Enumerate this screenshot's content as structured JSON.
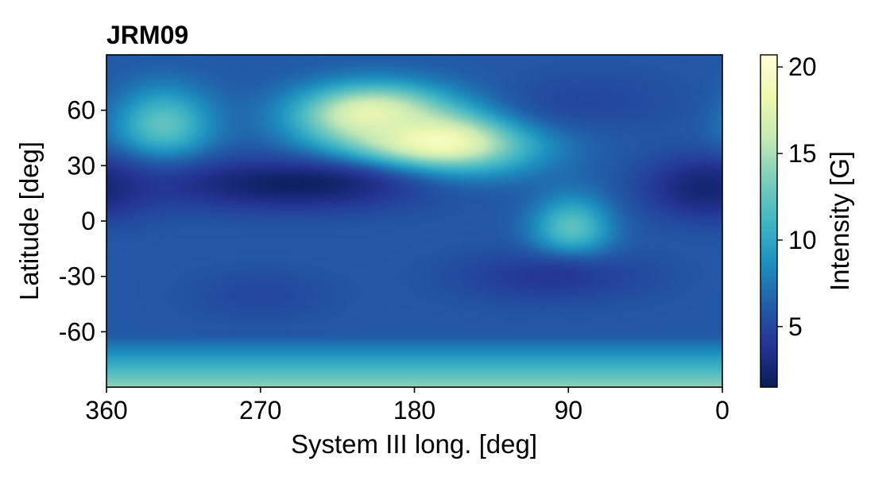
{
  "chart_data": {
    "type": "heatmap",
    "title": "JRM09",
    "xlabel": "System III long. [deg]",
    "ylabel": "Latitude [deg]",
    "colorbar_label": "Intensity [G]",
    "xlim": [
      360,
      0
    ],
    "ylim": [
      -90,
      90
    ],
    "x_ticks": [
      360,
      270,
      180,
      90,
      0
    ],
    "x_tick_labels": [
      "360",
      "270",
      "180",
      "90",
      "0"
    ],
    "y_ticks": [
      60,
      30,
      0,
      -30,
      -60
    ],
    "y_tick_labels": [
      "60",
      "30",
      "0",
      "-30",
      "-60"
    ],
    "colorbar_range": [
      1.5,
      20.7
    ],
    "colorbar_ticks": [
      5,
      10,
      15,
      20
    ],
    "colorbar_tick_labels": [
      "5",
      "10",
      "15",
      "20"
    ],
    "colormap": "YlGnBu_r",
    "colormap_stops": [
      "#081d58",
      "#253494",
      "#225ea8",
      "#1d91c0",
      "#41b6c4",
      "#7fcdbb",
      "#c7e9b4",
      "#edf8b1",
      "#ffffd9"
    ],
    "field_features": [
      {
        "lon": 168,
        "lat": 43,
        "intensity": 20.5,
        "sigma_lon": 38,
        "sigma_lat": 13
      },
      {
        "lon": 205,
        "lat": 58,
        "intensity": 18,
        "sigma_lon": 30,
        "sigma_lat": 11
      },
      {
        "lon": 327,
        "lat": 52,
        "intensity": 12.5,
        "sigma_lon": 20,
        "sigma_lat": 14
      },
      {
        "lon": 88,
        "lat": -5,
        "intensity": 12.5,
        "sigma_lon": 16,
        "sigma_lat": 13
      },
      {
        "lon": 250,
        "lat": 20,
        "intensity": 2,
        "sigma_lon": 60,
        "sigma_lat": 10
      },
      {
        "lon": 10,
        "lat": 18,
        "intensity": 2.5,
        "sigma_lon": 25,
        "sigma_lat": 12
      },
      {
        "lon": 80,
        "lat": 65,
        "intensity": 5,
        "sigma_lon": 40,
        "sigma_lat": 12
      },
      {
        "lon": 270,
        "lat": -40,
        "intensity": 5,
        "sigma_lon": 30,
        "sigma_lat": 10
      },
      {
        "lon": 100,
        "lat": -30,
        "intensity": 4,
        "sigma_lon": 40,
        "sigma_lat": 10
      }
    ],
    "background_intensity": 6,
    "south_pole_intensity": 14
  }
}
